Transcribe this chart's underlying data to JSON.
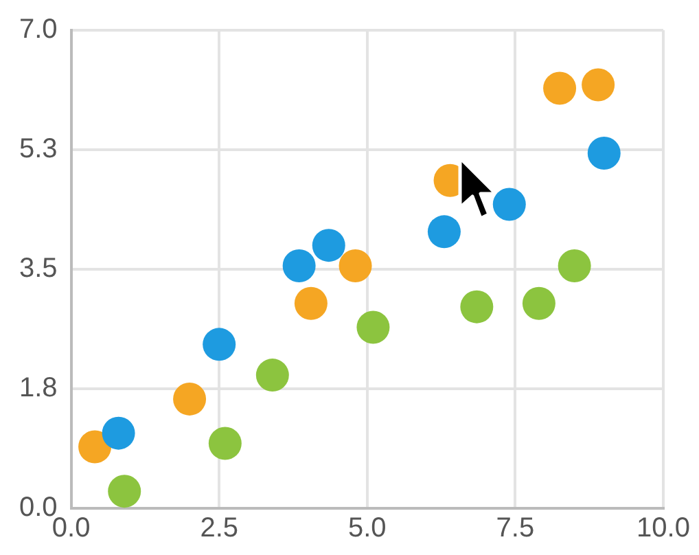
{
  "chart_data": {
    "type": "scatter",
    "xlim": [
      0,
      10
    ],
    "xticks": [
      {
        "value": 0,
        "label": "0.0"
      },
      {
        "value": 2.5,
        "label": "2.5"
      },
      {
        "value": 5,
        "label": "5.0"
      },
      {
        "value": 7.5,
        "label": "7.5"
      },
      {
        "value": 10,
        "label": "10.0"
      }
    ],
    "ylim": [
      0,
      7
    ],
    "yticks": [
      {
        "value": 0,
        "label": "0.0"
      },
      {
        "value": 1.75,
        "label": "1.8"
      },
      {
        "value": 3.5,
        "label": "3.5"
      },
      {
        "value": 5.25,
        "label": "5.3"
      },
      {
        "value": 7,
        "label": "7.0"
      }
    ],
    "grid": true,
    "legend": false,
    "marker": "circle",
    "series": [
      {
        "color": "#1e9be0",
        "x": [
          0.8,
          2.5,
          3.85,
          4.35,
          6.3,
          7.4,
          9.0
        ],
        "values": [
          1.1,
          2.4,
          3.55,
          3.85,
          4.05,
          4.45,
          5.2
        ]
      },
      {
        "color": "#f5a623",
        "x": [
          0.4,
          2.0,
          4.05,
          4.8,
          6.4,
          8.25,
          8.9
        ],
        "values": [
          0.9,
          1.6,
          3.0,
          3.55,
          4.8,
          6.15,
          6.2
        ]
      },
      {
        "color": "#8cc43f",
        "x": [
          0.9,
          2.6,
          3.4,
          5.1,
          6.85,
          7.9,
          8.5
        ],
        "values": [
          0.25,
          0.95,
          1.95,
          2.65,
          2.95,
          3.0,
          3.55
        ]
      }
    ]
  }
}
